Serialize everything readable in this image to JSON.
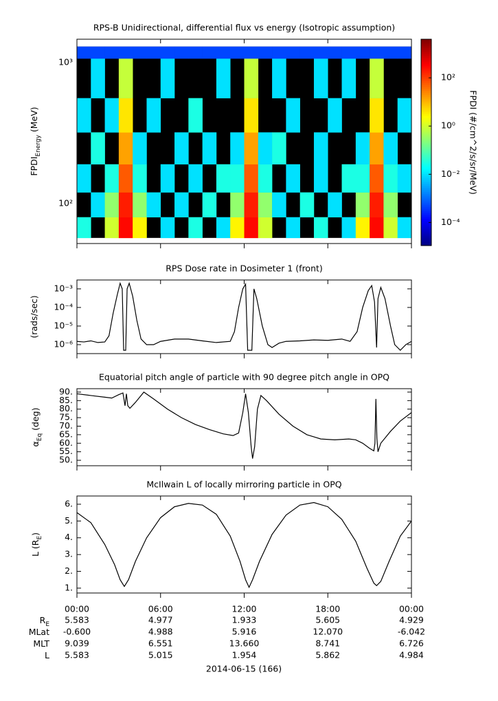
{
  "chart_data": [
    {
      "type": "heatmap",
      "title": "RPS-B  Unidirectional, differential flux vs energy (Isotropic assumption)",
      "ylabel": [
        {
          "text": "FPDI"
        },
        {
          "text": "Energy",
          "sub": true
        },
        {
          "text": " (MeV)"
        }
      ],
      "colorbar_label": "FPDI (#/cm^2/s/sr/MeV)",
      "xlim": [
        0,
        24
      ],
      "ylim": [
        52,
        1466
      ],
      "ylog": true,
      "yticks": [
        {
          "value": 100,
          "label": "10²"
        },
        {
          "value": 1000,
          "label": "10³"
        }
      ],
      "zlim": [
        1.1e-05,
        4000
      ],
      "zlog": true,
      "zticks": [
        {
          "value": 0.0001,
          "label": "10⁻⁴"
        },
        {
          "value": 0.01,
          "label": "10⁻²"
        },
        {
          "value": 1,
          "label": "10⁰"
        },
        {
          "value": 100,
          "label": "10²"
        }
      ],
      "x_bins": [
        0,
        1,
        2,
        3,
        4,
        5,
        6,
        7,
        8,
        9,
        10,
        11,
        12,
        13,
        14,
        15,
        16,
        17,
        18,
        19,
        20,
        21,
        22,
        23,
        24
      ],
      "y_bins": [
        57,
        80,
        120,
        190,
        320,
        560,
        1070,
        1300
      ],
      "z": [
        [
          0.03,
          null,
          1,
          300,
          3,
          null,
          0.01,
          null,
          0.03,
          null,
          0.01,
          3,
          300,
          1,
          null,
          0.01,
          null,
          0.03,
          null,
          0.01,
          3,
          300,
          1,
          0.01
        ],
        [
          null,
          0.01,
          0.3,
          200,
          0.3,
          0.01,
          null,
          0.01,
          null,
          0.03,
          null,
          0.3,
          200,
          0.3,
          0.01,
          null,
          0.03,
          null,
          0.01,
          null,
          0.3,
          200,
          0.3,
          null
        ],
        [
          0.01,
          null,
          0.03,
          60,
          0.03,
          null,
          0.01,
          null,
          0.01,
          null,
          0.03,
          0.03,
          60,
          0.03,
          null,
          0.01,
          null,
          0.01,
          null,
          0.03,
          0.03,
          60,
          0.03,
          0.01
        ],
        [
          null,
          0.03,
          null,
          15,
          0.01,
          null,
          null,
          0.01,
          null,
          0.01,
          null,
          0.01,
          15,
          0.01,
          0.03,
          null,
          null,
          0.01,
          null,
          null,
          0.01,
          15,
          0.01,
          null
        ],
        [
          0.01,
          null,
          0.01,
          4,
          null,
          0.01,
          null,
          null,
          0.03,
          null,
          null,
          null,
          4,
          null,
          null,
          0.01,
          null,
          null,
          0.01,
          null,
          null,
          4,
          null,
          0.01
        ],
        [
          null,
          0.01,
          null,
          0.8,
          null,
          null,
          0.01,
          null,
          null,
          null,
          0.01,
          null,
          0.8,
          null,
          0.01,
          null,
          null,
          0.01,
          null,
          0.01,
          null,
          0.8,
          null,
          null
        ],
        [
          0.0005,
          0.0005,
          0.0005,
          0.0005,
          0.0005,
          0.0005,
          0.0005,
          0.0005,
          0.0005,
          0.0005,
          0.0005,
          0.0005,
          0.0005,
          0.0005,
          0.0005,
          0.0005,
          0.0005,
          0.0005,
          0.0005,
          0.0005,
          0.0005,
          0.0005,
          0.0005,
          0.0005
        ]
      ]
    },
    {
      "type": "line",
      "title": "RPS  Dose rate in Dosimeter 1 (front)",
      "ylabel": [
        {
          "text": "(rads/sec)"
        }
      ],
      "xlim": [
        0,
        24
      ],
      "ylim": [
        3.3e-07,
        0.003
      ],
      "ylog": true,
      "color": "#000000",
      "yticks": [
        {
          "value": 1e-06,
          "label": "10⁻⁶"
        },
        {
          "value": 1e-05,
          "label": "10⁻⁵"
        },
        {
          "value": 0.0001,
          "label": "10⁻⁴"
        },
        {
          "value": 0.001,
          "label": "10⁻³"
        }
      ],
      "x": [
        0,
        0.5,
        1,
        1.5,
        2,
        2.3,
        2.6,
        2.9,
        3.1,
        3.25,
        3.35,
        3.5,
        3.6,
        3.75,
        4.0,
        4.3,
        4.6,
        5,
        5.5,
        6,
        7,
        8,
        9,
        10,
        11,
        11.3,
        11.6,
        11.9,
        12.1,
        12.25,
        12.55,
        12.7,
        12.9,
        13.3,
        13.7,
        14,
        14.5,
        15,
        16,
        17,
        18,
        19,
        19.6,
        20.1,
        20.5,
        20.9,
        21.15,
        21.35,
        21.5,
        21.6,
        21.8,
        22.1,
        22.5,
        22.8,
        23.2,
        23.6,
        24
      ],
      "values": [
        1.5e-06,
        1.4e-06,
        1.6e-06,
        1.3e-06,
        1.4e-06,
        3e-06,
        5e-05,
        0.0005,
        0.002,
        0.001,
        5e-07,
        5e-07,
        0.001,
        0.002,
        0.0004,
        2e-05,
        2e-06,
        1e-06,
        1e-06,
        1.5e-06,
        2e-06,
        2e-06,
        1.6e-06,
        1.3e-06,
        1.5e-06,
        5e-06,
        0.0001,
        0.001,
        0.0018,
        5e-07,
        5e-07,
        0.001,
        0.0003,
        1e-05,
        1e-06,
        7e-07,
        1.2e-06,
        1.5e-06,
        1.6e-06,
        1.8e-06,
        1.7e-06,
        2e-06,
        1.5e-06,
        5e-06,
        0.0001,
        0.0008,
        0.0015,
        0.0002,
        7e-07,
        0.0003,
        0.0012,
        0.0003,
        1e-05,
        1e-06,
        5e-07,
        1e-06,
        1.5e-06
      ]
    },
    {
      "type": "line",
      "title": "Equatorial pitch angle of particle with 90 degree pitch angle in OPQ",
      "ylabel": [
        {
          "text": "α"
        },
        {
          "text": "Eq",
          "sub": true
        },
        {
          "text": " (deg)"
        }
      ],
      "xlim": [
        0,
        24
      ],
      "ylim": [
        46.8,
        92
      ],
      "color": "#000000",
      "yticks": [
        {
          "value": 50,
          "label": "50."
        },
        {
          "value": 55,
          "label": "55."
        },
        {
          "value": 60,
          "label": "60."
        },
        {
          "value": 65,
          "label": "65."
        },
        {
          "value": 70,
          "label": "70."
        },
        {
          "value": 75,
          "label": "75."
        },
        {
          "value": 80,
          "label": "80."
        },
        {
          "value": 85,
          "label": "85."
        },
        {
          "value": 90,
          "label": "90."
        }
      ],
      "x": [
        0,
        1,
        2,
        2.5,
        3,
        3.3,
        3.45,
        3.55,
        3.65,
        3.8,
        4.2,
        4.8,
        5.5,
        6.5,
        7.5,
        8.5,
        9.5,
        10.5,
        11.2,
        11.6,
        11.9,
        12.1,
        12.3,
        12.5,
        12.6,
        12.75,
        12.95,
        13.2,
        13.6,
        14.5,
        15.5,
        16.5,
        17.5,
        18.5,
        19.5,
        20,
        20.5,
        21,
        21.3,
        21.38,
        21.45,
        21.52,
        21.6,
        21.8,
        22.5,
        23.2,
        24
      ],
      "values": [
        89,
        88,
        87,
        86.5,
        88.5,
        89.5,
        82,
        89,
        82,
        80.5,
        84,
        90,
        86,
        80,
        75,
        71,
        68,
        65.5,
        64.5,
        66,
        78,
        89,
        78,
        58,
        51,
        58,
        80,
        88,
        85,
        77,
        70,
        65,
        62.5,
        62,
        62.5,
        62,
        60,
        57,
        55.5,
        60,
        86,
        63,
        55,
        60,
        67,
        73,
        78
      ]
    },
    {
      "type": "line",
      "title": "McIlwain L of locally mirroring particle in OPQ",
      "ylabel": [
        {
          "text": "L (R"
        },
        {
          "text": "E",
          "sub": true
        },
        {
          "text": ")"
        }
      ],
      "xlim": [
        0,
        24
      ],
      "ylim": [
        0.71,
        6.49
      ],
      "color": "#000000",
      "yticks": [
        {
          "value": 1,
          "label": "1."
        },
        {
          "value": 2,
          "label": "2."
        },
        {
          "value": 3,
          "label": "3."
        },
        {
          "value": 4,
          "label": "4."
        },
        {
          "value": 5,
          "label": "5."
        },
        {
          "value": 6,
          "label": "6."
        }
      ],
      "xticks": [
        {
          "value": 0,
          "label": "00:00"
        },
        {
          "value": 6,
          "label": "06:00"
        },
        {
          "value": 12,
          "label": "12:00"
        },
        {
          "value": 18,
          "label": "18:00"
        },
        {
          "value": 24,
          "label": "00:00"
        }
      ],
      "x": [
        0,
        1,
        2,
        2.7,
        3.1,
        3.4,
        3.7,
        4.2,
        5,
        6,
        7,
        8,
        9,
        10,
        11,
        11.7,
        12.1,
        12.35,
        12.6,
        13.1,
        14,
        15,
        16,
        17,
        18,
        19,
        20,
        20.8,
        21.3,
        21.5,
        21.8,
        22.4,
        23.2,
        24
      ],
      "values": [
        5.5,
        4.9,
        3.6,
        2.4,
        1.5,
        1.1,
        1.5,
        2.6,
        4.0,
        5.2,
        5.85,
        6.05,
        5.95,
        5.4,
        4.1,
        2.6,
        1.5,
        1.05,
        1.5,
        2.6,
        4.2,
        5.35,
        5.95,
        6.1,
        5.85,
        5.1,
        3.8,
        2.2,
        1.3,
        1.15,
        1.4,
        2.6,
        4.1,
        5.0
      ]
    }
  ],
  "ephemeris": {
    "rows": [
      {
        "label": "R",
        "label_sub": "E",
        "values": [
          "5.583",
          "4.977",
          "1.933",
          "5.605",
          "4.929"
        ]
      },
      {
        "label": "MLat",
        "values": [
          "-0.600",
          "4.988",
          "5.916",
          "12.070",
          "-6.042"
        ]
      },
      {
        "label": "MLT",
        "values": [
          "9.039",
          "6.551",
          "13.660",
          "8.741",
          "6.726"
        ]
      },
      {
        "label": "L",
        "values": [
          "5.583",
          "5.015",
          "1.954",
          "5.862",
          "4.984"
        ]
      }
    ],
    "date": "2014-06-15 (166)"
  }
}
